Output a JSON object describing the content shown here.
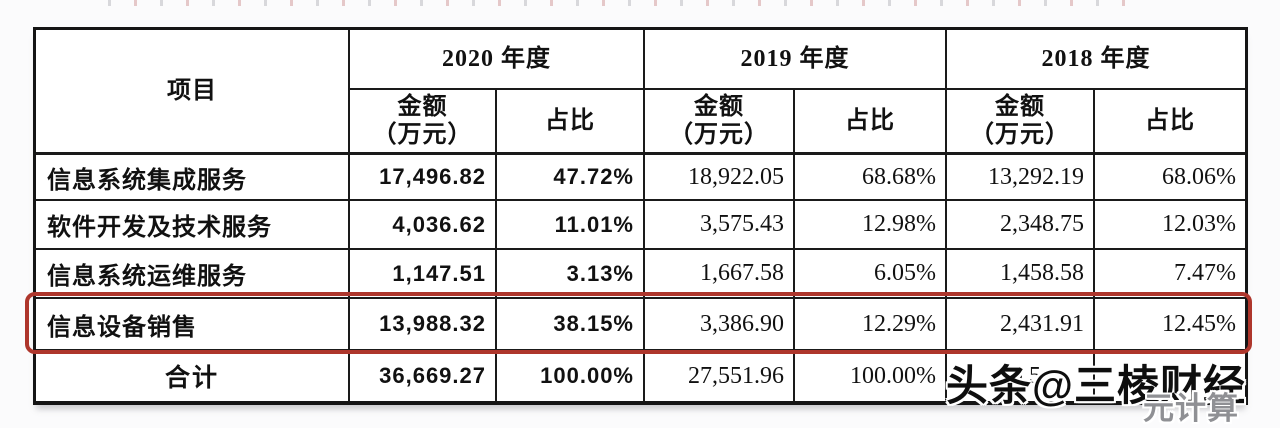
{
  "colors": {
    "highlight_box": "#ae362c",
    "table_border": "#151515",
    "watermark_gray": "#8f9094",
    "page_background": "#fbfbfc"
  },
  "watermark": {
    "main": "头条@三棱财经",
    "secondary": "元计算"
  },
  "table": {
    "header": {
      "item_col": "项目",
      "years": [
        "2020 年度",
        "2019 年度",
        "2018 年度"
      ],
      "amount_label": "金额",
      "amount_unit": "（万元）",
      "ratio_label": "占比"
    },
    "rows": [
      {
        "label": "信息系统集成服务",
        "highlighted": false,
        "cells": [
          "17,496.82",
          "47.72%",
          "18,922.05",
          "68.68%",
          "13,292.19",
          "68.06%"
        ]
      },
      {
        "label": "软件开发及技术服务",
        "highlighted": false,
        "cells": [
          "4,036.62",
          "11.01%",
          "3,575.43",
          "12.98%",
          "2,348.75",
          "12.03%"
        ]
      },
      {
        "label": "信息系统运维服务",
        "highlighted": false,
        "cells": [
          "1,147.51",
          "3.13%",
          "1,667.58",
          "6.05%",
          "1,458.58",
          "7.47%"
        ]
      },
      {
        "label": "信息设备销售",
        "highlighted": true,
        "cells": [
          "13,988.32",
          "38.15%",
          "3,386.90",
          "12.29%",
          "2,431.91",
          "12.45%"
        ]
      }
    ],
    "total": {
      "label": "合计",
      "cells": [
        "36,669.27",
        "100.00%",
        "27,551.96",
        "100.00%",
        "19,5",
        ""
      ]
    }
  }
}
